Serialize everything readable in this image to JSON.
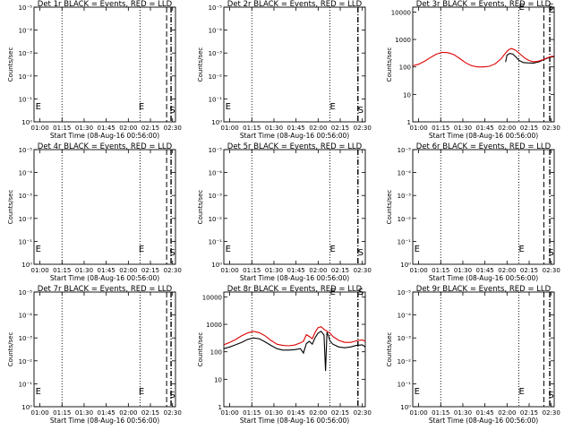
{
  "chart_data": [
    {
      "id": "det1",
      "type": "line",
      "title": "Det 1r BLACK = Events, RED = LLD",
      "xlabel": "Start Time (08-Aug-16 00:56:00)",
      "ylabel": "Counts/sec",
      "xticks": [
        "01:00",
        "01:15",
        "01:30",
        "01:45",
        "02:00",
        "02:15",
        "02:30"
      ],
      "yticks": [
        "10⁰",
        "10⁻¹",
        "10⁻²",
        "10⁻³",
        "10⁻⁴",
        "10⁻⁵"
      ],
      "xlim": [
        0,
        96
      ],
      "ylog": false,
      "ylim": [
        0,
        5
      ],
      "markers": {
        "dotted": [
          19,
          72
        ],
        "dashed": [
          90
        ],
        "dashdot": [
          93
        ]
      },
      "annotations": [
        {
          "text": "E",
          "x": 1,
          "y": 0.55
        },
        {
          "text": "E",
          "x": 71,
          "y": 0.55
        },
        {
          "text": "S",
          "x": 92,
          "y": 0.4
        }
      ],
      "series": []
    },
    {
      "id": "det2",
      "type": "line",
      "title": "Det 2r BLACK = Events, RED = LLD",
      "xlabel": "Start Time (08-Aug-16 00:56:00)",
      "ylabel": "Counts/sec",
      "xticks": [
        "01:00",
        "01:15",
        "01:30",
        "01:45",
        "02:00",
        "02:15",
        "02:30"
      ],
      "yticks": [
        "10⁰",
        "10⁻¹",
        "10⁻²",
        "10⁻³",
        "10⁻⁴",
        "10⁻⁵"
      ],
      "xlim": [
        0,
        96
      ],
      "ylog": false,
      "ylim": [
        0,
        5
      ],
      "markers": {
        "dotted": [
          19,
          72
        ],
        "dashed": [],
        "dashdot": [
          91
        ]
      },
      "annotations": [
        {
          "text": "E",
          "x": 1,
          "y": 0.55
        },
        {
          "text": "E",
          "x": 72,
          "y": 0.55
        },
        {
          "text": "S",
          "x": 91,
          "y": 0.4
        }
      ],
      "series": []
    },
    {
      "id": "det3",
      "type": "line",
      "title": "Det 3r BLACK = Events, RED = LLD",
      "xlabel": "Start Time (08-Aug-16 00:56:00)",
      "ylabel": "Counts/sec",
      "xticks": [
        "01:00",
        "01:15",
        "01:30",
        "01:45",
        "02:00",
        "02:15",
        "02:30"
      ],
      "yticks": [
        "1",
        "10",
        "100",
        "1000",
        "10000"
      ],
      "xlim": [
        0,
        96
      ],
      "ylog": true,
      "ylim": [
        1,
        15000
      ],
      "markers": {
        "dotted": [
          19,
          72
        ],
        "dashed": [
          89
        ],
        "dashdot": [
          93
        ]
      },
      "annotations": [
        {
          "text": "E",
          "x": 72,
          "y": 12000
        },
        {
          "text": "S",
          "x": 92,
          "y": 12000
        }
      ],
      "series": [
        {
          "color": "#000000",
          "x": [
            63,
            64,
            66,
            68,
            70,
            72,
            75,
            78,
            82,
            86,
            90,
            93,
            95,
            96
          ],
          "y": [
            150,
            270,
            310,
            290,
            230,
            175,
            145,
            140,
            138,
            155,
            195,
            225,
            235,
            230
          ]
        },
        {
          "color": "#dd0000",
          "x": [
            0,
            4,
            8,
            12,
            16,
            20,
            24,
            28,
            32,
            36,
            40,
            44,
            48,
            52,
            56,
            60,
            63,
            65,
            67,
            70,
            73,
            76,
            79,
            82,
            85,
            88,
            91,
            94,
            96
          ],
          "y": [
            110,
            125,
            160,
            220,
            290,
            340,
            330,
            280,
            200,
            140,
            110,
            100,
            100,
            105,
            130,
            200,
            320,
            420,
            470,
            400,
            290,
            210,
            170,
            155,
            160,
            180,
            210,
            240,
            245
          ]
        }
      ]
    },
    {
      "id": "det4",
      "type": "line",
      "title": "Det 4r BLACK = Events, RED = LLD",
      "xlabel": "Start Time (08-Aug-16 00:56:00)",
      "ylabel": "Counts/sec",
      "xticks": [
        "01:00",
        "01:15",
        "01:30",
        "01:45",
        "02:00",
        "02:15",
        "02:30"
      ],
      "yticks": [
        "10⁰",
        "10⁻¹",
        "10⁻²",
        "10⁻³",
        "10⁻⁴",
        "10⁻⁵"
      ],
      "xlim": [
        0,
        96
      ],
      "ylog": false,
      "ylim": [
        0,
        5
      ],
      "markers": {
        "dotted": [
          19,
          72
        ],
        "dashed": [
          90
        ],
        "dashdot": [
          93
        ]
      },
      "annotations": [
        {
          "text": "E",
          "x": 1,
          "y": 0.55
        },
        {
          "text": "E",
          "x": 71,
          "y": 0.55
        },
        {
          "text": "S",
          "x": 92,
          "y": 0.4
        }
      ],
      "series": []
    },
    {
      "id": "det5",
      "type": "line",
      "title": "Det 5r BLACK = Events, RED = LLD",
      "xlabel": "Start Time (08-Aug-16 00:56:00)",
      "ylabel": "Counts/sec",
      "xticks": [
        "01:00",
        "01:15",
        "01:30",
        "01:45",
        "02:00",
        "02:15",
        "02:30"
      ],
      "yticks": [
        "10⁰",
        "10⁻¹",
        "10⁻²",
        "10⁻³",
        "10⁻⁴",
        "10⁻⁵"
      ],
      "xlim": [
        0,
        96
      ],
      "ylog": false,
      "ylim": [
        0,
        5
      ],
      "markers": {
        "dotted": [
          19,
          72
        ],
        "dashed": [],
        "dashdot": [
          91
        ]
      },
      "annotations": [
        {
          "text": "E",
          "x": 1,
          "y": 0.55
        },
        {
          "text": "E",
          "x": 72,
          "y": 0.55
        },
        {
          "text": "S",
          "x": 91,
          "y": 0.4
        }
      ],
      "series": []
    },
    {
      "id": "det6",
      "type": "line",
      "title": "Det 6r BLACK = Events, RED = LLD",
      "xlabel": "Start Time (08-Aug-16 00:56:00)",
      "ylabel": "Counts/sec",
      "xticks": [
        "01:00",
        "01:15",
        "01:30",
        "01:45",
        "02:00",
        "02:15",
        "02:30"
      ],
      "yticks": [
        "10⁰",
        "10⁻¹",
        "10⁻²",
        "10⁻³",
        "10⁻⁴",
        "10⁻⁵"
      ],
      "xlim": [
        0,
        96
      ],
      "ylog": false,
      "ylim": [
        0,
        5
      ],
      "markers": {
        "dotted": [
          19,
          72
        ],
        "dashed": [
          89
        ],
        "dashdot": [
          93
        ]
      },
      "annotations": [
        {
          "text": "E",
          "x": 1,
          "y": 0.55
        },
        {
          "text": "E",
          "x": 72,
          "y": 0.55
        },
        {
          "text": "S",
          "x": 92,
          "y": 0.4
        }
      ],
      "series": []
    },
    {
      "id": "det7",
      "type": "line",
      "title": "Det 7r BLACK = Events, RED = LLD",
      "xlabel": "Start Time (08-Aug-16 00:56:00)",
      "ylabel": "Counts/sec",
      "xticks": [
        "01:00",
        "01:15",
        "01:30",
        "01:45",
        "02:00",
        "02:15",
        "02:30"
      ],
      "yticks": [
        "10⁰",
        "10⁻¹",
        "10⁻²",
        "10⁻³",
        "10⁻⁴",
        "10⁻⁵"
      ],
      "xlim": [
        0,
        96
      ],
      "ylog": false,
      "ylim": [
        0,
        5
      ],
      "markers": {
        "dotted": [
          19,
          72
        ],
        "dashed": [
          90
        ],
        "dashdot": [
          93
        ]
      },
      "annotations": [
        {
          "text": "E",
          "x": 1,
          "y": 0.55
        },
        {
          "text": "E",
          "x": 71,
          "y": 0.55
        },
        {
          "text": "S",
          "x": 92,
          "y": 0.4
        }
      ],
      "series": []
    },
    {
      "id": "det8",
      "type": "line",
      "title": "Det 8r BLACK = Events, RED = LLD",
      "xlabel": "Start Time (08-Aug-16 00:56:00)",
      "ylabel": "Counts/sec",
      "xticks": [
        "01:00",
        "01:15",
        "01:30",
        "01:45",
        "02:00",
        "02:15",
        "02:30"
      ],
      "yticks": [
        "1",
        "10",
        "100",
        "1000",
        "10000"
      ],
      "xlim": [
        0,
        96
      ],
      "ylog": true,
      "ylim": [
        1,
        15000
      ],
      "markers": {
        "dotted": [
          19,
          72
        ],
        "dashed": [],
        "dashdot": [
          91
        ]
      },
      "annotations": [
        {
          "text": "E",
          "x": 72,
          "y": 12000
        },
        {
          "text": "S",
          "x": 91,
          "y": 12000
        }
      ],
      "series": [
        {
          "color": "#000000",
          "x": [
            0,
            4,
            8,
            12,
            16,
            20,
            24,
            28,
            32,
            36,
            40,
            44,
            48,
            52,
            54,
            56,
            58,
            60,
            62,
            64,
            66,
            68,
            69,
            70,
            71,
            72,
            74,
            78,
            82,
            86,
            90,
            94,
            96
          ],
          "y": [
            130,
            150,
            180,
            220,
            280,
            320,
            300,
            230,
            170,
            130,
            115,
            115,
            120,
            130,
            90,
            200,
            240,
            190,
            330,
            480,
            560,
            410,
            20,
            520,
            380,
            250,
            190,
            150,
            140,
            150,
            170,
            180,
            150
          ]
        },
        {
          "color": "#dd0000",
          "x": [
            0,
            4,
            8,
            12,
            16,
            20,
            24,
            28,
            32,
            36,
            40,
            44,
            48,
            52,
            54,
            56,
            58,
            60,
            62,
            64,
            66,
            68,
            70,
            72,
            74,
            78,
            82,
            86,
            90,
            94,
            96
          ],
          "y": [
            180,
            220,
            280,
            380,
            480,
            560,
            500,
            380,
            260,
            190,
            170,
            165,
            175,
            210,
            240,
            420,
            360,
            300,
            520,
            760,
            820,
            660,
            560,
            480,
            360,
            260,
            220,
            220,
            250,
            270,
            240
          ]
        }
      ]
    },
    {
      "id": "det9",
      "type": "line",
      "title": "Det 9r BLACK = Events, RED = LLD",
      "xlabel": "Start Time (08-Aug-16 00:56:00)",
      "ylabel": "Counts/sec",
      "xticks": [
        "01:00",
        "01:15",
        "01:30",
        "01:45",
        "02:00",
        "02:15",
        "02:30"
      ],
      "yticks": [
        "10⁰",
        "10⁻¹",
        "10⁻²",
        "10⁻³",
        "10⁻⁴",
        "10⁻⁵"
      ],
      "xlim": [
        0,
        96
      ],
      "ylog": false,
      "ylim": [
        0,
        5
      ],
      "markers": {
        "dotted": [
          19,
          72
        ],
        "dashed": [
          89
        ],
        "dashdot": [
          93
        ]
      },
      "annotations": [
        {
          "text": "E",
          "x": 1,
          "y": 0.55
        },
        {
          "text": "E",
          "x": 72,
          "y": 0.55
        },
        {
          "text": "S",
          "x": 92,
          "y": 0.4
        }
      ],
      "series": []
    }
  ]
}
